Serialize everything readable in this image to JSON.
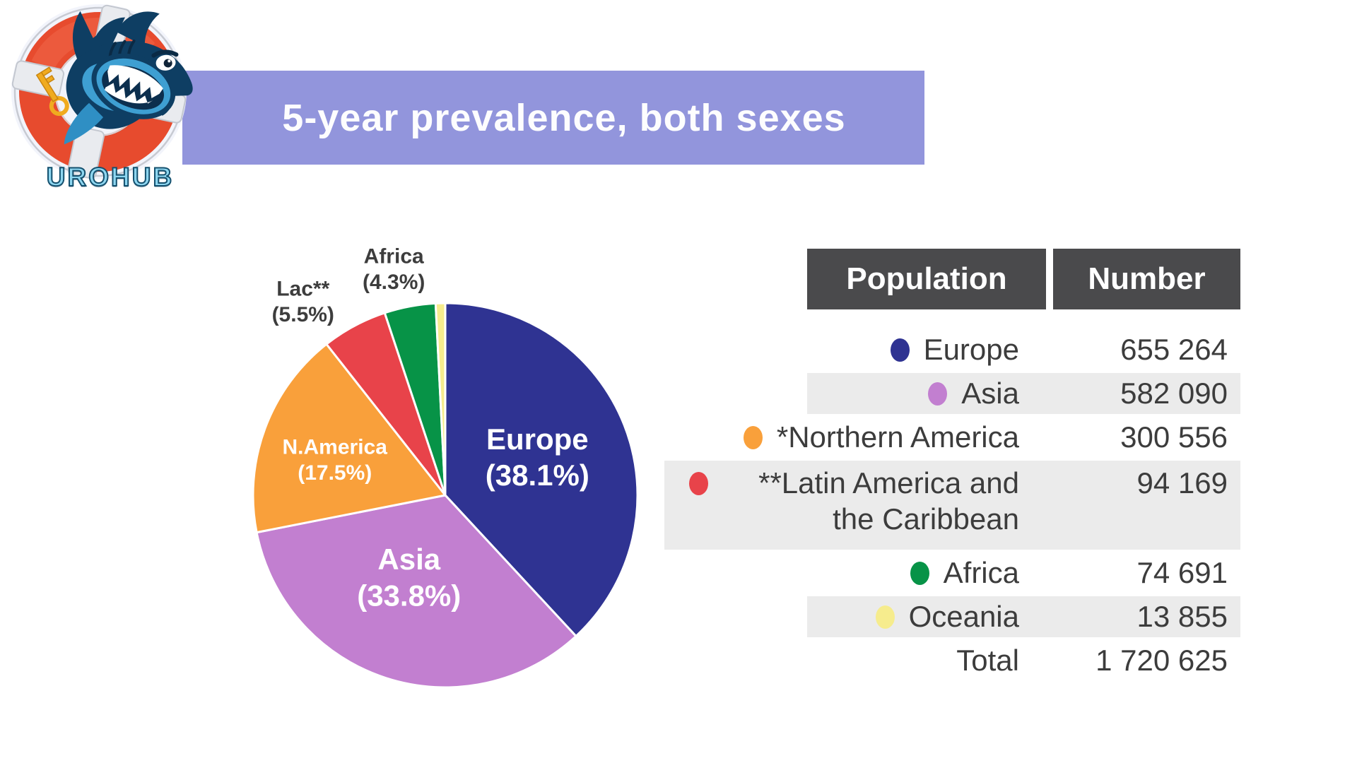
{
  "logo": {
    "brand": "UROHUB"
  },
  "banner": {
    "title": "5-year prevalence, both sexes",
    "bg_color": "#9295dc",
    "text_color": "#fdfdfe"
  },
  "chart_data": {
    "type": "pie",
    "title": "5-year prevalence, both sexes",
    "legend_position": "right-table",
    "total_label": "Total",
    "total_value": "1 720 625",
    "slices": [
      {
        "name": "Europe",
        "pie_label": "Europe",
        "pct": 38.1,
        "value": "655 264",
        "color": "#2f3392",
        "label_pos": "inside"
      },
      {
        "name": "Asia",
        "pie_label": "Asia",
        "pct": 33.8,
        "value": "582 090",
        "color": "#c27fd0",
        "label_pos": "inside"
      },
      {
        "name": "*Northern America",
        "pie_label": "N.America",
        "pct": 17.5,
        "value": "300 556",
        "color": "#f9a03b",
        "label_pos": "inside"
      },
      {
        "name": "**Latin America and the Caribbean",
        "pie_label": "Lac**",
        "pct": 5.5,
        "value": "94 169",
        "color": "#e8434a",
        "label_pos": "outside"
      },
      {
        "name": "Africa",
        "pie_label": "Africa",
        "pct": 4.3,
        "value": "74 691",
        "color": "#079347",
        "label_pos": "outside"
      },
      {
        "name": "Oceania",
        "pie_label": null,
        "pct": 0.8,
        "value": "13 855",
        "color": "#f6ec8d",
        "label_pos": "none"
      }
    ],
    "inside_label_color": "#ffffff",
    "outside_label_color": "#3d3d3d"
  },
  "table": {
    "headers": [
      "Population",
      "Number"
    ],
    "header_bg": "#4a4a4c",
    "header_text_color": "#ffffff",
    "stripe_color": "#ebebeb",
    "text_color": "#3c3c3c"
  }
}
